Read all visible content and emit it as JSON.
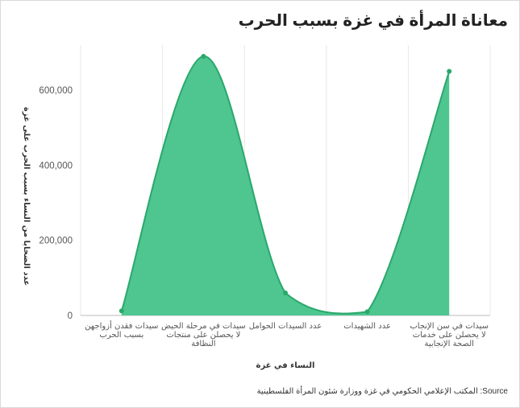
{
  "title": "معاناة المرأة في غزة بسبب الحرب",
  "source": "المكتب الإعلامي الحكومي في غزة ووزارة شئون المرأة الفلسطينية :Source",
  "colors": {
    "area_fill": "#4fc590",
    "line": "#2aa86b",
    "grid": "#e8e8e8",
    "baseline": "#bbbbbb"
  },
  "chart_data": {
    "type": "area",
    "title": "معاناة المرأة في غزة بسبب الحرب",
    "xlabel": "النساء في غزة",
    "ylabel": "عدد الضحايا من النساء بسبب الحرب على غزة",
    "categories": [
      [
        "سيدات فقدن أزواجهن",
        "بسبب الحرب"
      ],
      [
        "سيدات في مرحلة الحيض",
        "لا يحصلن على منتجات",
        "النظافة"
      ],
      [
        "عدد السيدات الحوامل"
      ],
      [
        "عدد الشهيدات"
      ],
      [
        "سيدات في سن الإنجاب",
        "لا يحصلن على خدمات",
        "الصحة الإنجابية"
      ]
    ],
    "values": [
      12000,
      690000,
      60000,
      10000,
      650000
    ],
    "ylim": [
      0,
      720000
    ],
    "yticks": [
      0,
      200000,
      400000,
      600000
    ],
    "ytick_labels": [
      "0",
      "200,000",
      "400,000",
      "600,000"
    ],
    "grid": "vertical"
  }
}
